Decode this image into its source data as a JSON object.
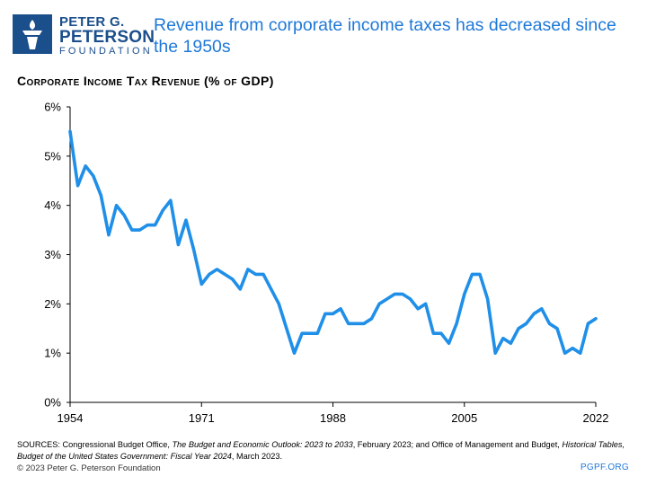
{
  "brand": {
    "line1": "PETER G.",
    "line2": "PETERSON",
    "line3": "FOUNDATION",
    "color": "#1b4f8c"
  },
  "headline": "Revenue from corporate income taxes has decreased since the 1950s",
  "chart_data": {
    "type": "line",
    "title": "Corporate Income Tax Revenue (% of GDP)",
    "xlabel": "",
    "ylabel": "",
    "xlim": [
      1954,
      2022
    ],
    "ylim": [
      0,
      6
    ],
    "x_ticks": [
      "1954",
      "1971",
      "1988",
      "2005",
      "2022"
    ],
    "x_tick_values": [
      1954,
      1971,
      1988,
      2005,
      2022
    ],
    "y_ticks": [
      "0%",
      "1%",
      "2%",
      "3%",
      "4%",
      "5%",
      "6%"
    ],
    "y_tick_values": [
      0,
      1,
      2,
      3,
      4,
      5,
      6
    ],
    "grid": false,
    "line_color": "#1f8fe8",
    "series": [
      {
        "x": [
          1954,
          1955,
          1956,
          1957,
          1958,
          1959,
          1960,
          1961,
          1962,
          1963,
          1964,
          1965,
          1966,
          1967,
          1968,
          1969,
          1970,
          1971,
          1972,
          1973,
          1974,
          1975,
          1976,
          1977,
          1978,
          1979,
          1980,
          1981,
          1982,
          1983,
          1984,
          1985,
          1986,
          1987,
          1988,
          1989,
          1990,
          1991,
          1992,
          1993,
          1994,
          1995,
          1996,
          1997,
          1998,
          1999,
          2000,
          2001,
          2002,
          2003,
          2004,
          2005,
          2006,
          2007,
          2008,
          2009,
          2010,
          2011,
          2012,
          2013,
          2014,
          2015,
          2016,
          2017,
          2018,
          2019,
          2020,
          2021,
          2022
        ],
        "values": [
          5.5,
          4.4,
          4.8,
          4.6,
          4.2,
          3.4,
          4.0,
          3.8,
          3.5,
          3.5,
          3.6,
          3.6,
          3.9,
          4.1,
          3.2,
          3.7,
          3.1,
          2.4,
          2.6,
          2.7,
          2.6,
          2.5,
          2.3,
          2.7,
          2.6,
          2.6,
          2.3,
          2.0,
          1.5,
          1.0,
          1.4,
          1.4,
          1.4,
          1.8,
          1.8,
          1.9,
          1.6,
          1.6,
          1.6,
          1.7,
          2.0,
          2.1,
          2.2,
          2.2,
          2.1,
          1.9,
          2.0,
          1.4,
          1.4,
          1.2,
          1.6,
          2.2,
          2.6,
          2.6,
          2.1,
          1.0,
          1.3,
          1.2,
          1.5,
          1.6,
          1.8,
          1.9,
          1.6,
          1.5,
          1.0,
          1.1,
          1.0,
          1.6,
          1.7
        ]
      }
    ]
  },
  "sources": {
    "p1": "SOURCES: Congressional Budget Office, ",
    "i1": "The Budget and Economic Outlook: 2023 to 2033",
    "p2": ", February 2023; and Office of Management and Budget, ",
    "i2": "Historical Tables, Budget of the United States Government: Fiscal Year 2024",
    "p3": ", March 2023."
  },
  "footer": {
    "copyright": "© 2023 Peter G. Peterson Foundation",
    "site": "PGPF.ORG"
  }
}
